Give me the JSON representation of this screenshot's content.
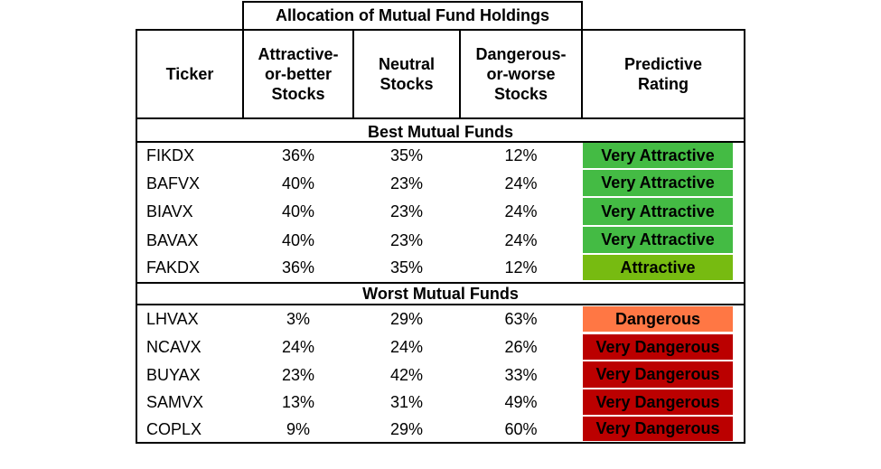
{
  "title": "Allocation of Mutual Fund Holdings",
  "headers": {
    "ticker": "Ticker",
    "attractive": "Attractive-or-better Stocks",
    "attractive_lines": [
      "Attractive-",
      "or-better",
      "Stocks"
    ],
    "neutral_lines": [
      "Neutral",
      "Stocks"
    ],
    "dangerous_lines": [
      "Dangerous-",
      "or-worse",
      "Stocks"
    ],
    "rating_lines": [
      "Predictive",
      "Rating"
    ]
  },
  "sections": {
    "best": "Best Mutual Funds",
    "worst": "Worst Mutual Funds"
  },
  "colors": {
    "very_attractive": "#44bb44",
    "attractive": "#77bb11",
    "dangerous": "#ff7744",
    "very_dangerous": "#bb0000"
  },
  "best_rows": [
    {
      "ticker": "FIKDX",
      "attractive": "36%",
      "neutral": "35%",
      "dangerous": "12%",
      "rating": "Very Attractive",
      "rating_class": "very_attractive"
    },
    {
      "ticker": "BAFVX",
      "attractive": "40%",
      "neutral": "23%",
      "dangerous": "24%",
      "rating": "Very Attractive",
      "rating_class": "very_attractive"
    },
    {
      "ticker": "BIAVX",
      "attractive": "40%",
      "neutral": "23%",
      "dangerous": "24%",
      "rating": "Very Attractive",
      "rating_class": "very_attractive"
    },
    {
      "ticker": "BAVAX",
      "attractive": "40%",
      "neutral": "23%",
      "dangerous": "24%",
      "rating": "Very Attractive",
      "rating_class": "very_attractive"
    },
    {
      "ticker": "FAKDX",
      "attractive": "36%",
      "neutral": "35%",
      "dangerous": "12%",
      "rating": "Attractive",
      "rating_class": "attractive"
    }
  ],
  "worst_rows": [
    {
      "ticker": "LHVAX",
      "attractive": "3%",
      "neutral": "29%",
      "dangerous": "63%",
      "rating": "Dangerous",
      "rating_class": "dangerous"
    },
    {
      "ticker": "NCAVX",
      "attractive": "24%",
      "neutral": "24%",
      "dangerous": "26%",
      "rating": "Very Dangerous",
      "rating_class": "very_dangerous"
    },
    {
      "ticker": "BUYAX",
      "attractive": "23%",
      "neutral": "42%",
      "dangerous": "33%",
      "rating": "Very Dangerous",
      "rating_class": "very_dangerous"
    },
    {
      "ticker": "SAMVX",
      "attractive": "13%",
      "neutral": "31%",
      "dangerous": "49%",
      "rating": "Very Dangerous",
      "rating_class": "very_dangerous"
    },
    {
      "ticker": "COPLX",
      "attractive": "9%",
      "neutral": "29%",
      "dangerous": "60%",
      "rating": "Very Dangerous",
      "rating_class": "very_dangerous"
    }
  ]
}
